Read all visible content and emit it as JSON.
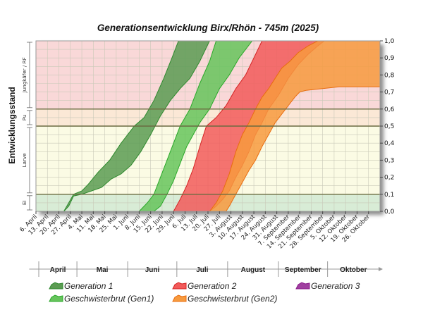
{
  "chart_data": {
    "type": "area",
    "title": "Generationsentwicklung Birx/Rhön - 745m (2025)",
    "ylabel": "Entwicklungsstand",
    "ylim": [
      0,
      1
    ],
    "y_ticks": [
      "0,0",
      "0,1",
      "0,2",
      "0,3",
      "0,4",
      "0,5",
      "0,6",
      "0,7",
      "0,8",
      "0,9",
      "1,0"
    ],
    "x_range_days": [
      0,
      210
    ],
    "x_tick_labels": [
      "6. April",
      "13. April",
      "20. April",
      "27. April",
      "4. Mai",
      "11. Mai",
      "18. Mai",
      "25. Mai",
      "1. Juni",
      "8. Juni",
      "15. Juni",
      "22. Juni",
      "29. Juni",
      "6. Juli",
      "13. Juli",
      "20. Juli",
      "27. Juli",
      "3. August",
      "10. August",
      "17. August",
      "24. August",
      "31. August",
      "7. September",
      "14. September",
      "21. September",
      "28. September",
      "5. Oktober",
      "12. Oktober",
      "19. Oktober",
      "26. Oktober"
    ],
    "months": [
      {
        "label": "April",
        "start": -5,
        "end": 25
      },
      {
        "label": "Mai",
        "start": 25,
        "end": 56
      },
      {
        "label": "Juni",
        "start": 56,
        "end": 86
      },
      {
        "label": "Juli",
        "start": 86,
        "end": 117
      },
      {
        "label": "August",
        "start": 117,
        "end": 148
      },
      {
        "label": "September",
        "start": 148,
        "end": 178
      },
      {
        "label": "Oktober",
        "start": 178,
        "end": 210
      }
    ],
    "stages": [
      {
        "label": "Ei",
        "from": 0.0,
        "to": 0.1,
        "color": "#d8ecd6"
      },
      {
        "label": "Larve",
        "from": 0.1,
        "to": 0.5,
        "color": "#fbfbe4"
      },
      {
        "label": "Pu",
        "from": 0.5,
        "to": 0.6,
        "color": "#fbe8d6"
      },
      {
        "label": "Jungkäfer / RF",
        "from": 0.6,
        "to": 1.0,
        "color": "#f9d8d8"
      }
    ],
    "series": [
      {
        "name": "Generation 1",
        "color": "#2f8a2f",
        "fill": "#5b9b52",
        "upper": [
          [
            17,
            0
          ],
          [
            20,
            0.05
          ],
          [
            23,
            0.1
          ],
          [
            28,
            0.12
          ],
          [
            32,
            0.16
          ],
          [
            38,
            0.23
          ],
          [
            45,
            0.3
          ],
          [
            52,
            0.4
          ],
          [
            60,
            0.5
          ],
          [
            66,
            0.55
          ],
          [
            72,
            0.65
          ],
          [
            78,
            0.78
          ],
          [
            83,
            0.9
          ],
          [
            87,
            1
          ]
        ],
        "lower": [
          [
            17,
            0
          ],
          [
            20,
            0.03
          ],
          [
            23,
            0.09
          ],
          [
            28,
            0.1
          ],
          [
            34,
            0.12
          ],
          [
            40,
            0.14
          ],
          [
            46,
            0.19
          ],
          [
            52,
            0.22
          ],
          [
            58,
            0.27
          ],
          [
            64,
            0.35
          ],
          [
            70,
            0.45
          ],
          [
            76,
            0.56
          ],
          [
            82,
            0.65
          ],
          [
            88,
            0.72
          ],
          [
            94,
            0.78
          ],
          [
            100,
            0.88
          ],
          [
            106,
            1
          ]
        ]
      },
      {
        "name": "Geschwisterbrut (Gen1)",
        "color": "#2aa82a",
        "fill": "#66c45c",
        "upper": [
          [
            63,
            0
          ],
          [
            68,
            0.05
          ],
          [
            72,
            0.1
          ],
          [
            76,
            0.2
          ],
          [
            80,
            0.3
          ],
          [
            84,
            0.4
          ],
          [
            88,
            0.5
          ],
          [
            94,
            0.6
          ],
          [
            100,
            0.75
          ],
          [
            106,
            0.88
          ],
          [
            110,
            1
          ]
        ],
        "lower": [
          [
            72,
            0
          ],
          [
            76,
            0.03
          ],
          [
            80,
            0.1
          ],
          [
            84,
            0.18
          ],
          [
            88,
            0.28
          ],
          [
            92,
            0.38
          ],
          [
            96,
            0.45
          ],
          [
            100,
            0.52
          ],
          [
            106,
            0.6
          ],
          [
            112,
            0.72
          ],
          [
            118,
            0.8
          ],
          [
            124,
            0.9
          ],
          [
            132,
            1
          ]
        ]
      },
      {
        "name": "Generation 2",
        "color": "#d42222",
        "fill": "#f25a5a",
        "upper": [
          [
            84,
            0
          ],
          [
            88,
            0.07
          ],
          [
            92,
            0.15
          ],
          [
            96,
            0.25
          ],
          [
            100,
            0.38
          ],
          [
            104,
            0.5
          ],
          [
            110,
            0.55
          ],
          [
            116,
            0.62
          ],
          [
            122,
            0.72
          ],
          [
            128,
            0.8
          ],
          [
            133,
            0.9
          ],
          [
            138,
            1
          ]
        ],
        "lower": [
          [
            106,
            0
          ],
          [
            110,
            0.03
          ],
          [
            114,
            0.07
          ],
          [
            118,
            0.12
          ],
          [
            122,
            0.2
          ],
          [
            126,
            0.27
          ],
          [
            130,
            0.35
          ],
          [
            134,
            0.45
          ],
          [
            138,
            0.52
          ],
          [
            142,
            0.6
          ],
          [
            148,
            0.68
          ],
          [
            154,
            0.78
          ],
          [
            160,
            0.86
          ],
          [
            166,
            0.92
          ],
          [
            172,
            0.97
          ],
          [
            176,
            1
          ]
        ]
      },
      {
        "name": "Geschwisterbrut (Gen2)",
        "color": "#e86d10",
        "fill": "#f79a3e",
        "upper": [
          [
            106,
            0
          ],
          [
            110,
            0.05
          ],
          [
            114,
            0.12
          ],
          [
            118,
            0.22
          ],
          [
            122,
            0.35
          ],
          [
            126,
            0.45
          ],
          [
            130,
            0.52
          ],
          [
            134,
            0.6
          ],
          [
            138,
            0.67
          ],
          [
            142,
            0.72
          ],
          [
            146,
            0.78
          ],
          [
            150,
            0.84
          ],
          [
            155,
            0.88
          ],
          [
            160,
            0.93
          ],
          [
            166,
            0.97
          ],
          [
            172,
            1
          ],
          [
            210,
            1
          ]
        ],
        "lower": [
          [
            116,
            0
          ],
          [
            118,
            0.03
          ],
          [
            122,
            0.1
          ],
          [
            126,
            0.17
          ],
          [
            130,
            0.24
          ],
          [
            134,
            0.3
          ],
          [
            138,
            0.38
          ],
          [
            142,
            0.45
          ],
          [
            146,
            0.52
          ],
          [
            150,
            0.57
          ],
          [
            154,
            0.62
          ],
          [
            158,
            0.67
          ],
          [
            161,
            0.7
          ],
          [
            165,
            0.71
          ],
          [
            175,
            0.72
          ],
          [
            185,
            0.73
          ],
          [
            195,
            0.73
          ],
          [
            210,
            0.73
          ]
        ]
      },
      {
        "name": "Generation 3",
        "color": "#8a1a8a",
        "fill": "#a040a0",
        "upper": [],
        "lower": []
      }
    ]
  }
}
